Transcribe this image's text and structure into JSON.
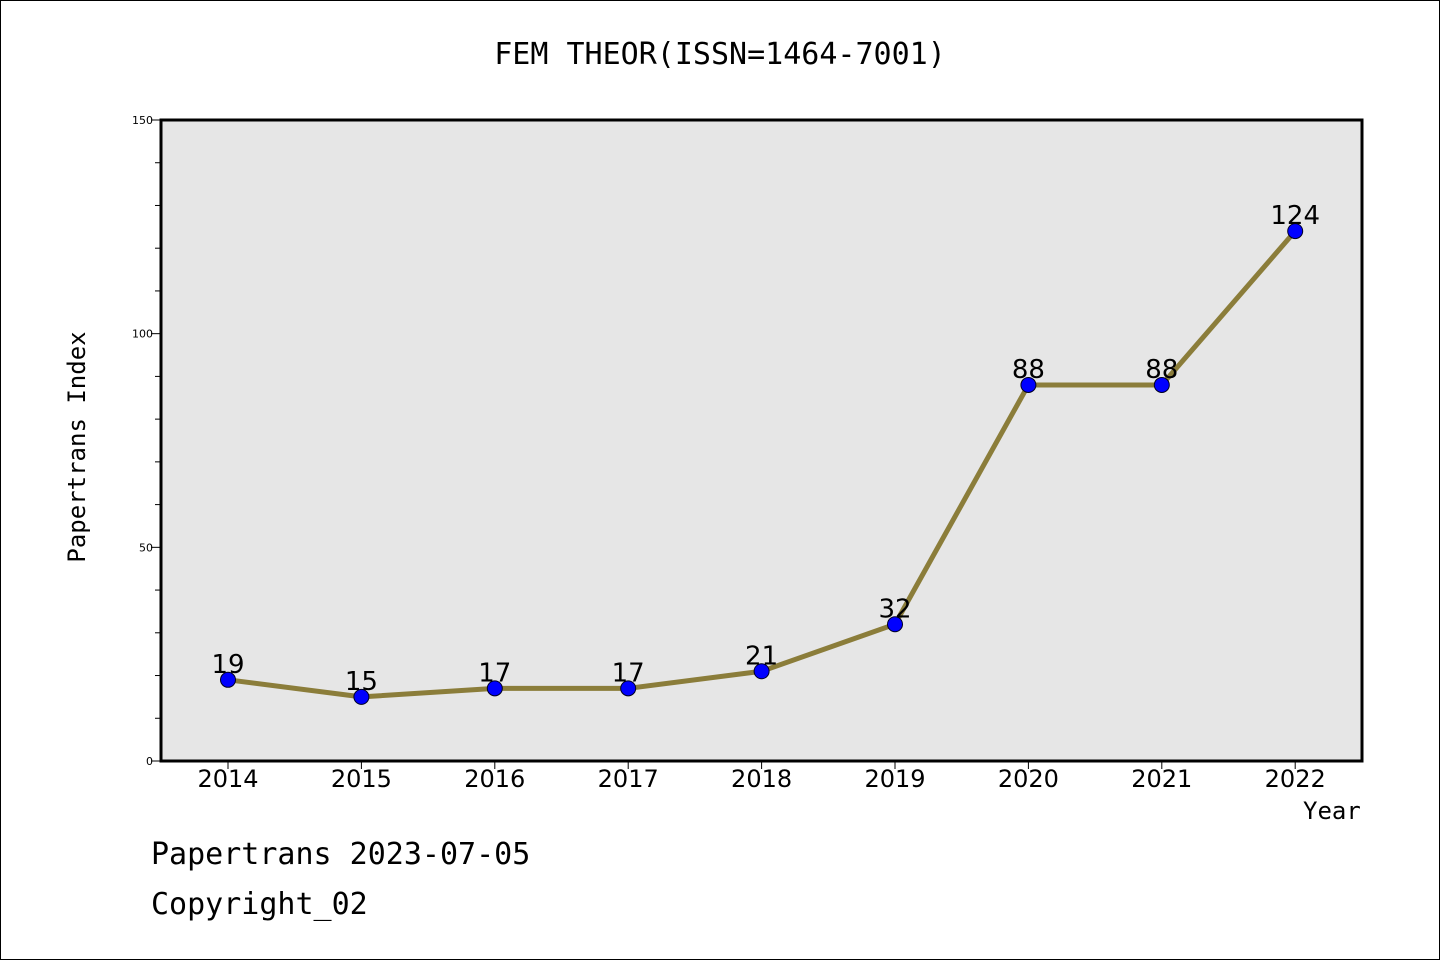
{
  "chart_data": {
    "type": "line",
    "title": "FEM THEOR(ISSN=1464-7001)",
    "xlabel": "Year",
    "ylabel": "Papertrans Index",
    "categories": [
      "2014",
      "2015",
      "2016",
      "2017",
      "2018",
      "2019",
      "2020",
      "2021",
      "2022"
    ],
    "series": [
      {
        "values": [
          19,
          15,
          17,
          17,
          21,
          32,
          88,
          88,
          124
        ]
      }
    ],
    "ylim": [
      0,
      150
    ],
    "yticks": [
      "0",
      "50",
      "100",
      "150"
    ],
    "grid": false,
    "colors": {
      "line": "#8b7d3a",
      "marker": "#0000ff",
      "plot_bg": "#e6e6e6"
    }
  },
  "footer": {
    "date_text": "Papertrans 2023-07-05",
    "copyright_text": "Copyright_02"
  }
}
